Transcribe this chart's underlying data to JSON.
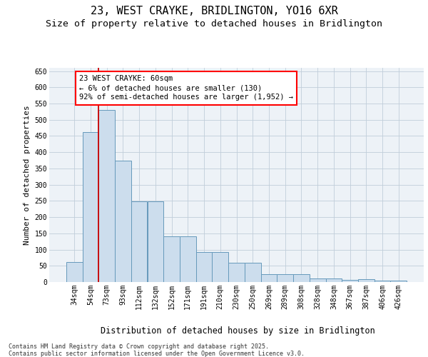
{
  "title": "23, WEST CRAYKE, BRIDLINGTON, YO16 6XR",
  "subtitle": "Size of property relative to detached houses in Bridlington",
  "xlabel": "Distribution of detached houses by size in Bridlington",
  "ylabel": "Number of detached properties",
  "categories": [
    "34sqm",
    "54sqm",
    "73sqm",
    "93sqm",
    "112sqm",
    "132sqm",
    "152sqm",
    "171sqm",
    "191sqm",
    "210sqm",
    "230sqm",
    "250sqm",
    "269sqm",
    "289sqm",
    "308sqm",
    "328sqm",
    "348sqm",
    "367sqm",
    "387sqm",
    "406sqm",
    "426sqm"
  ],
  "values": [
    62,
    463,
    530,
    375,
    248,
    248,
    140,
    140,
    93,
    93,
    60,
    60,
    25,
    25,
    25,
    10,
    11,
    6,
    9,
    5,
    5
  ],
  "bar_color": "#ccdded",
  "bar_edge_color": "#6699bb",
  "grid_color": "#c0ceda",
  "background_color": "#edf2f7",
  "vline_x": 1.5,
  "vline_color": "#cc0000",
  "annotation_text": "23 WEST CRAYKE: 60sqm\n← 6% of detached houses are smaller (130)\n92% of semi-detached houses are larger (1,952) →",
  "ylim": [
    0,
    660
  ],
  "yticks": [
    0,
    50,
    100,
    150,
    200,
    250,
    300,
    350,
    400,
    450,
    500,
    550,
    600,
    650
  ],
  "footer_line1": "Contains HM Land Registry data © Crown copyright and database right 2025.",
  "footer_line2": "Contains public sector information licensed under the Open Government Licence v3.0.",
  "title_fontsize": 11,
  "subtitle_fontsize": 9.5,
  "xlabel_fontsize": 8.5,
  "ylabel_fontsize": 8,
  "tick_fontsize": 7,
  "annotation_fontsize": 7.5,
  "footer_fontsize": 6
}
